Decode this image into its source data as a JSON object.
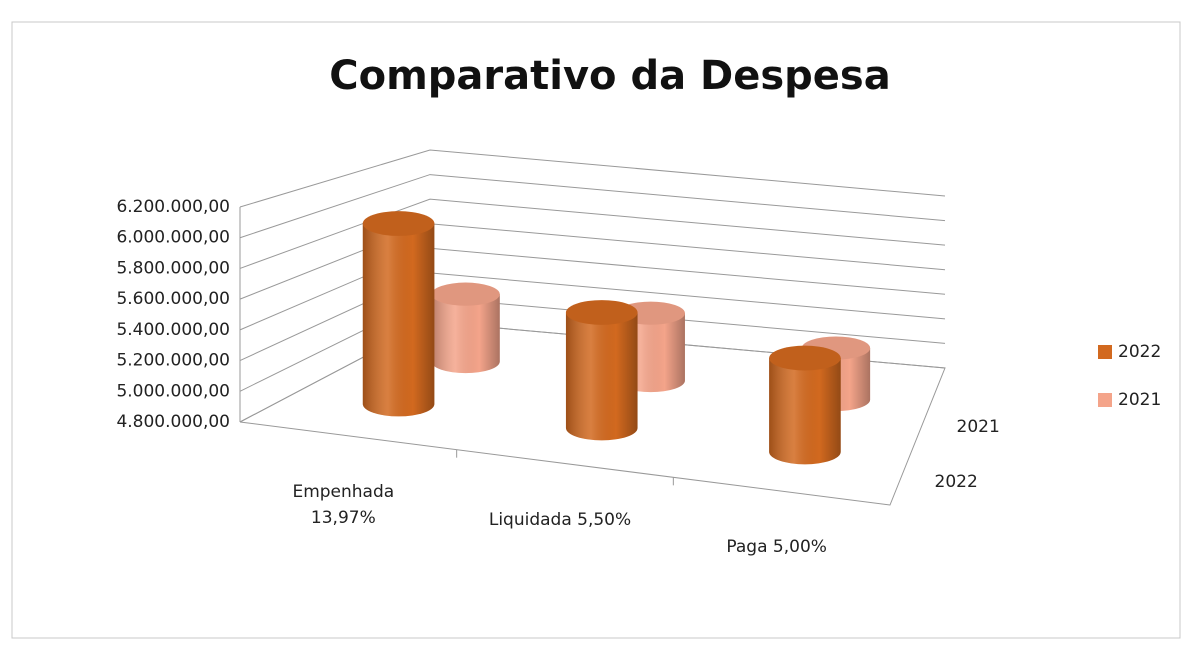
{
  "chart_data": {
    "type": "bar3d",
    "title": "Comparativo da Despesa",
    "categories": [
      "Empenhada 13,97%",
      "Liquidada 5,50%",
      "Paga 5,00%"
    ],
    "series": [
      {
        "name": "2022",
        "color": "#d2691f",
        "values": [
          6050000,
          5600000,
          5450000
        ]
      },
      {
        "name": "2021",
        "color": "#f4a48a",
        "values": [
          5310000,
          5310000,
          5190000
        ]
      }
    ],
    "ylim": [
      4800000,
      6200000
    ],
    "yticks": [
      {
        "value": 4800000,
        "label": "4.800.000,00"
      },
      {
        "value": 5000000,
        "label": "5.000.000,00"
      },
      {
        "value": 5200000,
        "label": "5.200.000,00"
      },
      {
        "value": 5400000,
        "label": "5.400.000,00"
      },
      {
        "value": 5600000,
        "label": "5.600.000,00"
      },
      {
        "value": 5800000,
        "label": "5.800.000,00"
      },
      {
        "value": 6000000,
        "label": "6.000.000,00"
      },
      {
        "value": 6200000,
        "label": "6.200.000,00"
      }
    ],
    "grid": true,
    "legend": "right"
  }
}
